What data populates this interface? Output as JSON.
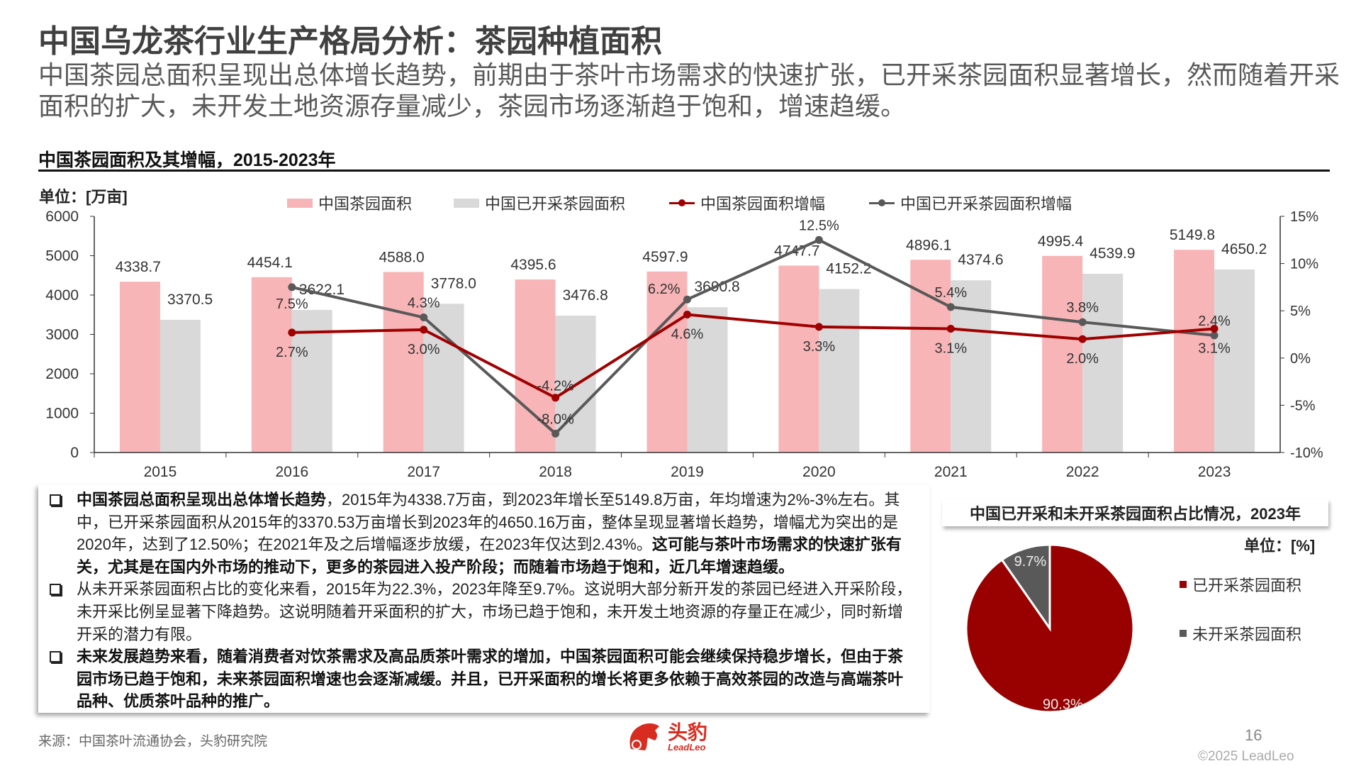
{
  "header": {
    "title": "中国乌龙茶行业生产格局分析：茶园种植面积",
    "subtitle": "中国茶园总面积呈现出总体增长趋势，前期由于茶叶市场需求的快速扩张，已开采茶园面积显著增长，然而随着开采面积的扩大，未开发土地资源存量减少，茶园市场逐渐趋于饱和，增速趋缓。"
  },
  "chart_section": {
    "title": "中国茶园面积及其增幅，2015-2023年",
    "unit": "单位：[万亩]"
  },
  "chart_data": {
    "type": "bar+line",
    "categories": [
      "2015",
      "2016",
      "2017",
      "2018",
      "2019",
      "2020",
      "2021",
      "2022",
      "2023"
    ],
    "series": [
      {
        "name": "中国茶园面积",
        "type": "bar",
        "axis": "left",
        "color": "#f8b5b7",
        "values": [
          4338.7,
          4454.1,
          4588.0,
          4395.6,
          4597.9,
          4747.7,
          4896.1,
          4995.4,
          5149.8
        ]
      },
      {
        "name": "中国已开采茶园面积",
        "type": "bar",
        "axis": "left",
        "color": "#d9d9d9",
        "values": [
          3370.5,
          3622.1,
          3778.0,
          3476.8,
          3690.8,
          4152.2,
          4374.6,
          4539.9,
          4650.2
        ]
      },
      {
        "name": "中国茶园面积增幅",
        "type": "line",
        "axis": "right",
        "color": "#a00000",
        "values": [
          null,
          2.7,
          3.0,
          -4.2,
          4.6,
          3.3,
          3.1,
          2.0,
          3.1
        ]
      },
      {
        "name": "中国已开采茶园面积增幅",
        "type": "line",
        "axis": "right",
        "color": "#595959",
        "values": [
          null,
          7.5,
          4.3,
          -8.0,
          6.2,
          12.5,
          5.4,
          3.8,
          2.4
        ]
      }
    ],
    "y_left": {
      "range": [
        0,
        6000
      ],
      "ticks": [
        "0",
        "1000",
        "2000",
        "3000",
        "4000",
        "5000",
        "6000"
      ]
    },
    "y_right": {
      "range": [
        -10,
        15
      ],
      "ticks": [
        "-10%",
        "-5%",
        "0%",
        "5%",
        "10%",
        "15%"
      ]
    },
    "legend": "top",
    "grid": false
  },
  "text_box": {
    "paragraphs": [
      {
        "segments": [
          {
            "text": "中国茶园总面积呈现出总体增长趋势",
            "bold": true
          },
          {
            "text": "，2015年为4338.7万亩，到2023年增长至5149.8万亩，年均增速为2%-3%左右。其中，已开采茶园面积从2015年的3370.53万亩增长到2023年的4650.16万亩，整体呈现显著增长趋势，增幅尤为突出的是2020年，达到了12.50%；在2021年及之后增幅逐步放缓，在2023年仅达到2.43%。",
            "bold": false
          },
          {
            "text": "这可能与茶叶市场需求的快速扩张有关，尤其是在国内外市场的推动下，更多的茶园进入投产阶段；而随着市场趋于饱和，近几年增速趋缓。",
            "bold": true
          }
        ]
      },
      {
        "segments": [
          {
            "text": "从未开采茶园面积占比的变化来看，2015年为22.3%，2023年降至9.7%。这说明大部分新开发的茶园已经进入开采阶段，未开采比例呈显著下降趋势。这说明随着开采面积的扩大，市场已趋于饱和，未开发土地资源的存量正在减少，同时新增开采的潜力有限。",
            "bold": false
          }
        ]
      },
      {
        "segments": [
          {
            "text": "未来发展趋势来看，随着消费者对饮茶需求及高品质茶叶需求的增加，中国茶园面积可能会继续保持稳步增长，但由于茶园市场已趋于饱和，未来茶园面积增速也会逐渐减缓。并且，已开采面积的增长将更多依赖于高效茶园的改造与高端茶叶品种、优质茶叶品种的推广。",
            "bold": true
          }
        ]
      }
    ]
  },
  "pie_section": {
    "title": "中国已开采和未开采茶园面积占比情况，2023年",
    "unit": "单位：[%]",
    "chart_data": {
      "type": "pie",
      "slices": [
        {
          "name": "已开采茶园面积",
          "value": 90.3,
          "label": "90.3%",
          "color": "#990000"
        },
        {
          "name": "未开采茶园面积",
          "value": 9.7,
          "label": "9.7%",
          "color": "#595959"
        }
      ],
      "legend": "right"
    }
  },
  "footer": {
    "source": "来源：中国茶叶流通协会，头豹研究院",
    "logo_cn": "头豹",
    "logo_en": "LeadLeo",
    "page_number": "16",
    "copyright": "©2025 LeadLeo"
  }
}
